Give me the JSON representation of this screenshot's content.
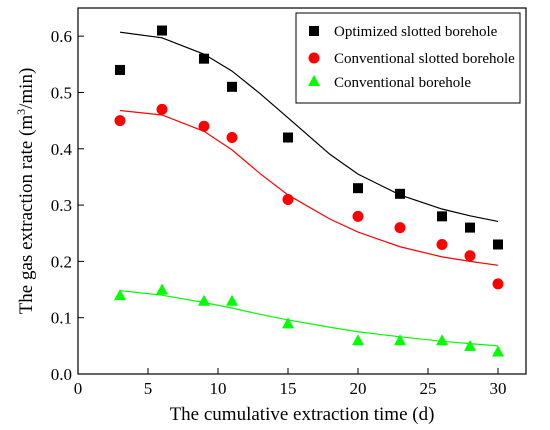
{
  "chart_data": {
    "type": "scatter",
    "xlabel": "The cumulative extraction time (d)",
    "ylabel_main": "The gas extraction rate (m",
    "ylabel_sup": "3",
    "ylabel_tail": "/min)",
    "xlim": [
      0,
      32
    ],
    "ylim": [
      0,
      0.65
    ],
    "x_ticks": [
      0,
      5,
      10,
      15,
      20,
      25,
      30
    ],
    "y_ticks": [
      0.0,
      0.1,
      0.2,
      0.3,
      0.4,
      0.5,
      0.6
    ],
    "x_tick_labels": [
      "0",
      "5",
      "10",
      "15",
      "20",
      "25",
      "30"
    ],
    "y_tick_labels": [
      "0.0",
      "0.1",
      "0.2",
      "0.3",
      "0.4",
      "0.5",
      "0.6"
    ],
    "grid": false,
    "legend_position": "top-right",
    "x": [
      3,
      6,
      9,
      11,
      15,
      20,
      23,
      26,
      28,
      30
    ],
    "series": [
      {
        "name": "Optimized slotted borehole",
        "marker": "square",
        "color": "#000000",
        "values": [
          0.54,
          0.61,
          0.56,
          0.51,
          0.42,
          0.33,
          0.32,
          0.28,
          0.26,
          0.23
        ],
        "fit_curve": {
          "x": [
            3,
            6,
            9,
            11,
            13,
            15,
            18,
            20,
            23,
            26,
            28,
            30
          ],
          "y": [
            0.607,
            0.597,
            0.568,
            0.538,
            0.498,
            0.455,
            0.39,
            0.355,
            0.318,
            0.293,
            0.281,
            0.271
          ]
        }
      },
      {
        "name": "Conventional slotted borehole",
        "marker": "circle",
        "color": "#ff0000",
        "values": [
          0.45,
          0.47,
          0.44,
          0.42,
          0.31,
          0.28,
          0.26,
          0.23,
          0.21,
          0.16
        ],
        "fit_curve": {
          "x": [
            3,
            6,
            9,
            11,
            13,
            15,
            18,
            20,
            23,
            26,
            28,
            30
          ],
          "y": [
            0.468,
            0.46,
            0.431,
            0.398,
            0.356,
            0.318,
            0.275,
            0.252,
            0.226,
            0.208,
            0.2,
            0.193
          ]
        }
      },
      {
        "name": "Conventional borehole",
        "marker": "triangle",
        "color": "#00ff00",
        "values": [
          0.14,
          0.15,
          0.13,
          0.13,
          0.09,
          0.06,
          0.06,
          0.06,
          0.05,
          0.04
        ],
        "fit_curve": {
          "x": [
            3,
            6,
            9,
            11,
            13,
            15,
            18,
            20,
            23,
            26,
            28,
            30
          ],
          "y": [
            0.148,
            0.14,
            0.127,
            0.117,
            0.106,
            0.096,
            0.083,
            0.075,
            0.066,
            0.058,
            0.054,
            0.05
          ]
        }
      }
    ]
  }
}
